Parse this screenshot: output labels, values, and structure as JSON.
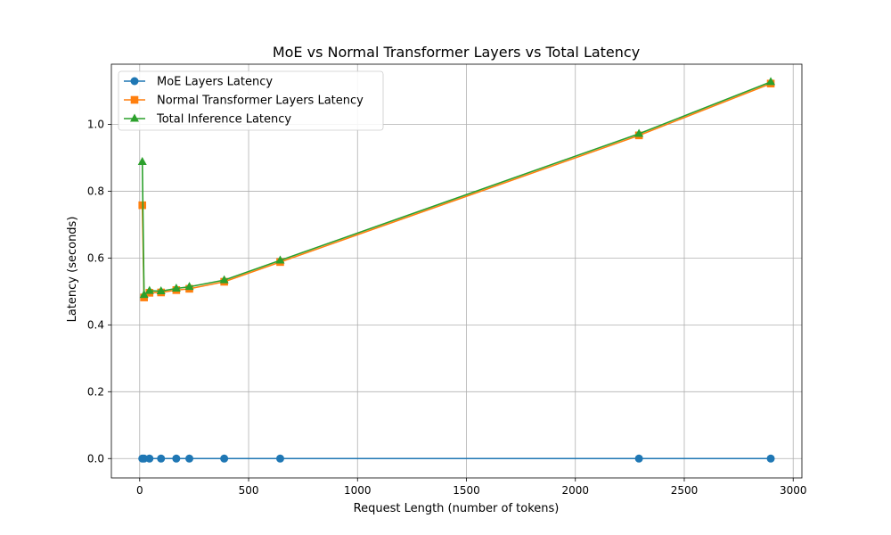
{
  "chart_data": {
    "type": "line",
    "title": "MoE vs Normal Transformer Layers vs Total Latency",
    "xlabel": "Request Length (number of tokens)",
    "ylabel": "Latency (seconds)",
    "xlim": [
      -130,
      3040
    ],
    "ylim": [
      -0.058,
      1.18
    ],
    "xticks": [
      0,
      500,
      1000,
      1500,
      2000,
      2500,
      3000
    ],
    "yticks": [
      0.0,
      0.2,
      0.4,
      0.6,
      0.8,
      1.0
    ],
    "xtick_labels": [
      "0",
      "500",
      "1000",
      "1500",
      "2000",
      "2500",
      "3000"
    ],
    "ytick_labels": [
      "0.0",
      "0.2",
      "0.4",
      "0.6",
      "0.8",
      "1.0"
    ],
    "grid": true,
    "legend_position": "upper-left",
    "x": [
      12,
      20,
      45,
      98,
      168,
      228,
      388,
      645,
      2292,
      2897
    ],
    "series": [
      {
        "name": "MoE Layers Latency",
        "color": "#1f77b4",
        "marker": "circle",
        "values": [
          0.0,
          0.0,
          0.0,
          0.0,
          0.0,
          0.0,
          0.0,
          0.0,
          0.0,
          0.0
        ]
      },
      {
        "name": "Normal Transformer Layers Latency",
        "color": "#ff7f0e",
        "marker": "square",
        "values": [
          0.758,
          0.482,
          0.496,
          0.497,
          0.504,
          0.508,
          0.529,
          0.588,
          0.967,
          1.122
        ]
      },
      {
        "name": "Total Inference Latency",
        "color": "#2ca02c",
        "marker": "triangle",
        "values": [
          0.888,
          0.49,
          0.502,
          0.501,
          0.509,
          0.514,
          0.534,
          0.593,
          0.972,
          1.127
        ]
      }
    ]
  }
}
